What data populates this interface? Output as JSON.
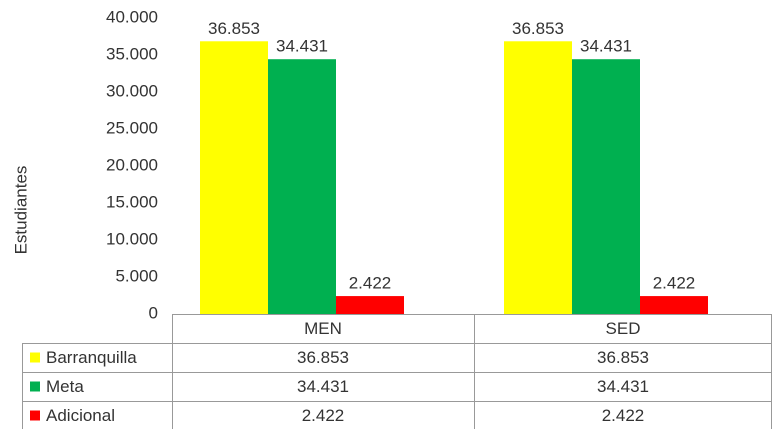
{
  "chart_data": {
    "type": "bar",
    "ylabel": "Estudiantes",
    "categories": [
      "MEN",
      "SED"
    ],
    "series": [
      {
        "name": "Barranquilla",
        "color": "#ffff00",
        "values": [
          36853,
          36853
        ],
        "value_labels": [
          "36.853",
          "36.853"
        ]
      },
      {
        "name": "Meta",
        "color": "#00b050",
        "values": [
          34431,
          34431
        ],
        "value_labels": [
          "34.431",
          "34.431"
        ]
      },
      {
        "name": "Adicional",
        "color": "#ff0000",
        "values": [
          2422,
          2422
        ],
        "value_labels": [
          "2.422",
          "2.422"
        ]
      }
    ],
    "ylim": [
      0,
      40000
    ],
    "yticks": [
      0,
      {
        "value": 5000,
        "label": "5.000"
      },
      {
        "value": 10000,
        "label": "10.000"
      },
      {
        "value": 15000,
        "label": "15.000"
      },
      {
        "value": 20000,
        "label": "20.000"
      },
      {
        "value": 25000,
        "label": "25.000"
      },
      {
        "value": 30000,
        "label": "30.000"
      },
      {
        "value": 35000,
        "label": "35.000"
      },
      {
        "value": 40000,
        "label": "40.000"
      }
    ],
    "grid": false,
    "data_table": true
  }
}
